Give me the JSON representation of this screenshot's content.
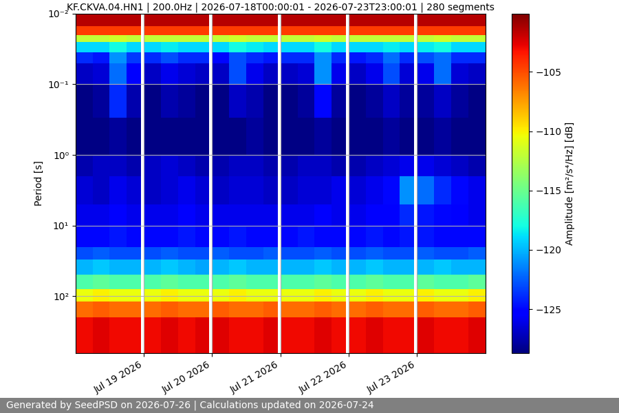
{
  "chart_data": {
    "type": "heatmap",
    "title": "KF.CKVA.04.HN1 | 200.0Hz | 2026-07-18T00:00:01 - 2026-07-23T23:00:01 | 280 segments",
    "y_label": "Period [s]",
    "colorbar_label": "Amplitude [m²/s⁴/Hz] [dB]",
    "log": "y",
    "grid": true,
    "x_edges": [
      "2026-07-18T00:00",
      "2026-07-18T06:00",
      "2026-07-18T12:00",
      "2026-07-18T18:00",
      "2026-07-18T23:00",
      "2026-07-19T00:00",
      "2026-07-19T06:00",
      "2026-07-19T12:00",
      "2026-07-19T18:00",
      "2026-07-19T23:00",
      "2026-07-20T00:00",
      "2026-07-20T06:00",
      "2026-07-20T12:00",
      "2026-07-20T18:00",
      "2026-07-20T23:00",
      "2026-07-21T00:00",
      "2026-07-21T06:00",
      "2026-07-21T12:00",
      "2026-07-21T18:00",
      "2026-07-21T23:00",
      "2026-07-22T00:00",
      "2026-07-22T06:00",
      "2026-07-22T12:00",
      "2026-07-22T18:00",
      "2026-07-22T23:00",
      "2026-07-23T00:00",
      "2026-07-23T06:00",
      "2026-07-23T12:00",
      "2026-07-23T18:00",
      "2026-07-24T00:00"
    ],
    "y_edges": [
      0.01,
      0.015,
      0.02,
      0.025,
      0.035,
      0.05,
      0.1,
      0.3,
      1,
      2,
      5,
      10,
      20,
      30,
      50,
      80,
      120,
      200,
      640
    ],
    "cells": [
      [
        -101.5,
        -101.5,
        -101.5,
        -101.5,
        null,
        -101.5,
        -101.5,
        -101.5,
        -101.5,
        null,
        -101.5,
        -101.5,
        -101.5,
        -101.5,
        null,
        -101.5,
        -101.5,
        -101.5,
        -101.5,
        null,
        -101.5,
        -101.5,
        -101.5,
        -101.5,
        null,
        -101.5,
        -101.5,
        -101.5,
        -101.5
      ],
      [
        -104.5,
        -104.5,
        -104.5,
        -104.5,
        null,
        -104.5,
        -104.5,
        -104.5,
        -104.5,
        null,
        -104.5,
        -104.5,
        -104.5,
        -104.5,
        null,
        -104.5,
        -104.5,
        -104.5,
        -104.5,
        null,
        -104.5,
        -104.5,
        -104.5,
        -104.5,
        null,
        -104.5,
        -104.5,
        -104.5,
        -104.5
      ],
      [
        -112,
        -112,
        -111.5,
        -112,
        null,
        -112,
        -112,
        -112,
        -112,
        null,
        -112,
        -111.5,
        -112,
        -112,
        null,
        -112,
        -112,
        -111.5,
        -112,
        null,
        -112,
        -112,
        -112,
        -112,
        null,
        -112,
        -111.5,
        -112,
        -112
      ],
      [
        -119,
        -119,
        -118,
        -119,
        null,
        -119,
        -118.5,
        -119,
        -119,
        null,
        -119,
        -118,
        -118.5,
        -119,
        null,
        -119,
        -119,
        -118,
        -119,
        null,
        -119,
        -119,
        -118.5,
        -119,
        null,
        -118.5,
        -118,
        -119,
        -119
      ],
      [
        -124,
        -124.5,
        -121,
        -123.5,
        null,
        -124,
        -123,
        -124,
        -124,
        null,
        -125,
        -123,
        -124,
        -124.5,
        null,
        -124,
        -124,
        -121,
        -124,
        null,
        -124.5,
        -124,
        -122,
        -124,
        null,
        -123,
        -122,
        -124,
        -124
      ],
      [
        -127,
        -126.5,
        -122,
        -125.5,
        null,
        -127,
        -126,
        -126.5,
        -127,
        null,
        -127,
        -123,
        -126,
        -127,
        null,
        -127,
        -126.5,
        -121,
        -126,
        null,
        -127,
        -126,
        -123,
        -126.5,
        null,
        -126,
        -122,
        -126.5,
        -127
      ],
      [
        -128.5,
        -128,
        -124,
        -127.5,
        null,
        -128.5,
        -127.5,
        -128,
        -128.5,
        null,
        -128.5,
        -127,
        -127.5,
        -128.5,
        null,
        -128.5,
        -128,
        -125,
        -128,
        null,
        -128.5,
        -128,
        -127,
        -128,
        null,
        -128,
        -127,
        -128,
        -128.5
      ],
      [
        -128.5,
        -128.5,
        -128,
        -128.5,
        null,
        -128.5,
        -128.5,
        -128.5,
        -128.5,
        null,
        -128.5,
        -128.5,
        -128,
        -128.5,
        null,
        -128.5,
        -128.5,
        -128,
        -128.5,
        null,
        -128.5,
        -128.5,
        -128,
        -128.5,
        null,
        -128.5,
        -128,
        -128.5,
        -128.5
      ],
      [
        -127.5,
        -127,
        -127,
        -127.5,
        null,
        -127,
        -126.5,
        -127,
        -127.5,
        null,
        -127.5,
        -127,
        -127,
        -127.5,
        null,
        -127.5,
        -127,
        -127,
        -127.5,
        null,
        -127.5,
        -127,
        -126.5,
        -126,
        null,
        -126,
        -126.5,
        -127,
        -127.5
      ],
      [
        -126.5,
        -127,
        -126,
        -126.5,
        null,
        -127,
        -126.5,
        -126,
        -126.5,
        null,
        -127,
        -126.5,
        -126.5,
        -127,
        null,
        -127,
        -126.5,
        -126.5,
        -126,
        null,
        -126.5,
        -126,
        -125,
        -121,
        null,
        -122,
        -124,
        -125,
        -126
      ],
      [
        -126,
        -126,
        -125.5,
        -126,
        null,
        -126,
        -126,
        -125.5,
        -126,
        null,
        -126,
        -126,
        -126,
        -126,
        null,
        -126,
        -126,
        -125.5,
        -126,
        null,
        -126,
        -125.5,
        -125.5,
        -124,
        null,
        -124.5,
        -125,
        -125.5,
        -126
      ],
      [
        -125,
        -125,
        -124.5,
        -125,
        null,
        -125,
        -125,
        -124.5,
        -125,
        null,
        -125,
        -124.5,
        -125,
        -125,
        null,
        -125,
        -124.5,
        -125,
        -125,
        null,
        -125,
        -124.5,
        -125,
        -124.5,
        null,
        -124.5,
        -125,
        -125,
        -125
      ],
      [
        -123,
        -122.5,
        -123,
        -123,
        null,
        -123,
        -122.5,
        -123,
        -123,
        null,
        -122.5,
        -123,
        -123,
        -122.5,
        null,
        -123,
        -123,
        -122.5,
        -123,
        null,
        -123,
        -122.5,
        -123,
        -123,
        null,
        -122.5,
        -123,
        -123,
        -122.5
      ],
      [
        -120,
        -119.5,
        -120,
        -120,
        null,
        -120,
        -119.5,
        -120,
        -120.5,
        null,
        -120,
        -119.5,
        -120,
        -120,
        null,
        -120,
        -120,
        -119.5,
        -120,
        null,
        -120,
        -119.5,
        -120,
        -120,
        null,
        -120,
        -119.5,
        -120,
        -120
      ],
      [
        -116,
        -115.5,
        -116,
        -116,
        null,
        -116,
        -115.5,
        -116,
        -116,
        null,
        -116,
        -115.5,
        -116,
        -116,
        null,
        -116,
        -116,
        -115.5,
        -116,
        null,
        -116,
        -115.5,
        -116,
        -116,
        null,
        -115.5,
        -116,
        -116,
        -115.5
      ],
      [
        -110.5,
        -110,
        -110.5,
        -110.5,
        null,
        -110.5,
        -110,
        -110.5,
        -110.5,
        null,
        -110.5,
        -110,
        -110.5,
        -110.5,
        null,
        -110.5,
        -110.5,
        -110,
        -110.5,
        null,
        -110.5,
        -110,
        -110.5,
        -110.5,
        null,
        -110,
        -110.5,
        -110.5,
        -110
      ],
      [
        -106,
        -105.5,
        -106,
        -106,
        null,
        -106,
        -105.5,
        -106,
        -106,
        null,
        -105.5,
        -106,
        -106,
        -105.5,
        null,
        -106,
        -106,
        -105.5,
        -106,
        null,
        -106,
        -105.5,
        -106,
        -106,
        null,
        -105.5,
        -106,
        -106,
        -105.5
      ],
      [
        -103,
        -102.5,
        -103,
        -103,
        null,
        -103,
        -102.5,
        -103,
        -102.5,
        null,
        -102.5,
        -103,
        -103,
        -102.5,
        null,
        -103,
        -103,
        -102.5,
        -103,
        null,
        -103,
        -102.5,
        -103,
        -103,
        null,
        -102.5,
        -103,
        -103,
        -102.5
      ]
    ],
    "xlim": [
      "2026-07-18T00:00",
      "2026-07-24T00:00"
    ],
    "xticks": [
      {
        "value": "2026-07-19T00:00",
        "label": "Jul 19 2026"
      },
      {
        "value": "2026-07-20T00:00",
        "label": "Jul 20 2026"
      },
      {
        "value": "2026-07-21T00:00",
        "label": "Jul 21 2026"
      },
      {
        "value": "2026-07-22T00:00",
        "label": "Jul 22 2026"
      },
      {
        "value": "2026-07-23T00:00",
        "label": "Jul 23 2026"
      }
    ],
    "ylim": [
      640,
      0.01
    ],
    "yticks": [
      {
        "value": 0.01,
        "label": "10⁻²"
      },
      {
        "value": 0.1,
        "label": "10⁻¹"
      },
      {
        "value": 1,
        "label": "10⁰"
      },
      {
        "value": 10,
        "label": "10¹"
      },
      {
        "value": 100,
        "label": "10²"
      }
    ],
    "clim": [
      -128.7,
      -100.1
    ],
    "cticks": [
      {
        "value": -105,
        "label": "−105"
      },
      {
        "value": -110,
        "label": "−110"
      },
      {
        "value": -115,
        "label": "−115"
      },
      {
        "value": -120,
        "label": "−120"
      },
      {
        "value": -125,
        "label": "−125"
      }
    ]
  },
  "footer": "Generated by SeedPSD on 2026-07-26 | Calculations updated on 2026-07-24"
}
